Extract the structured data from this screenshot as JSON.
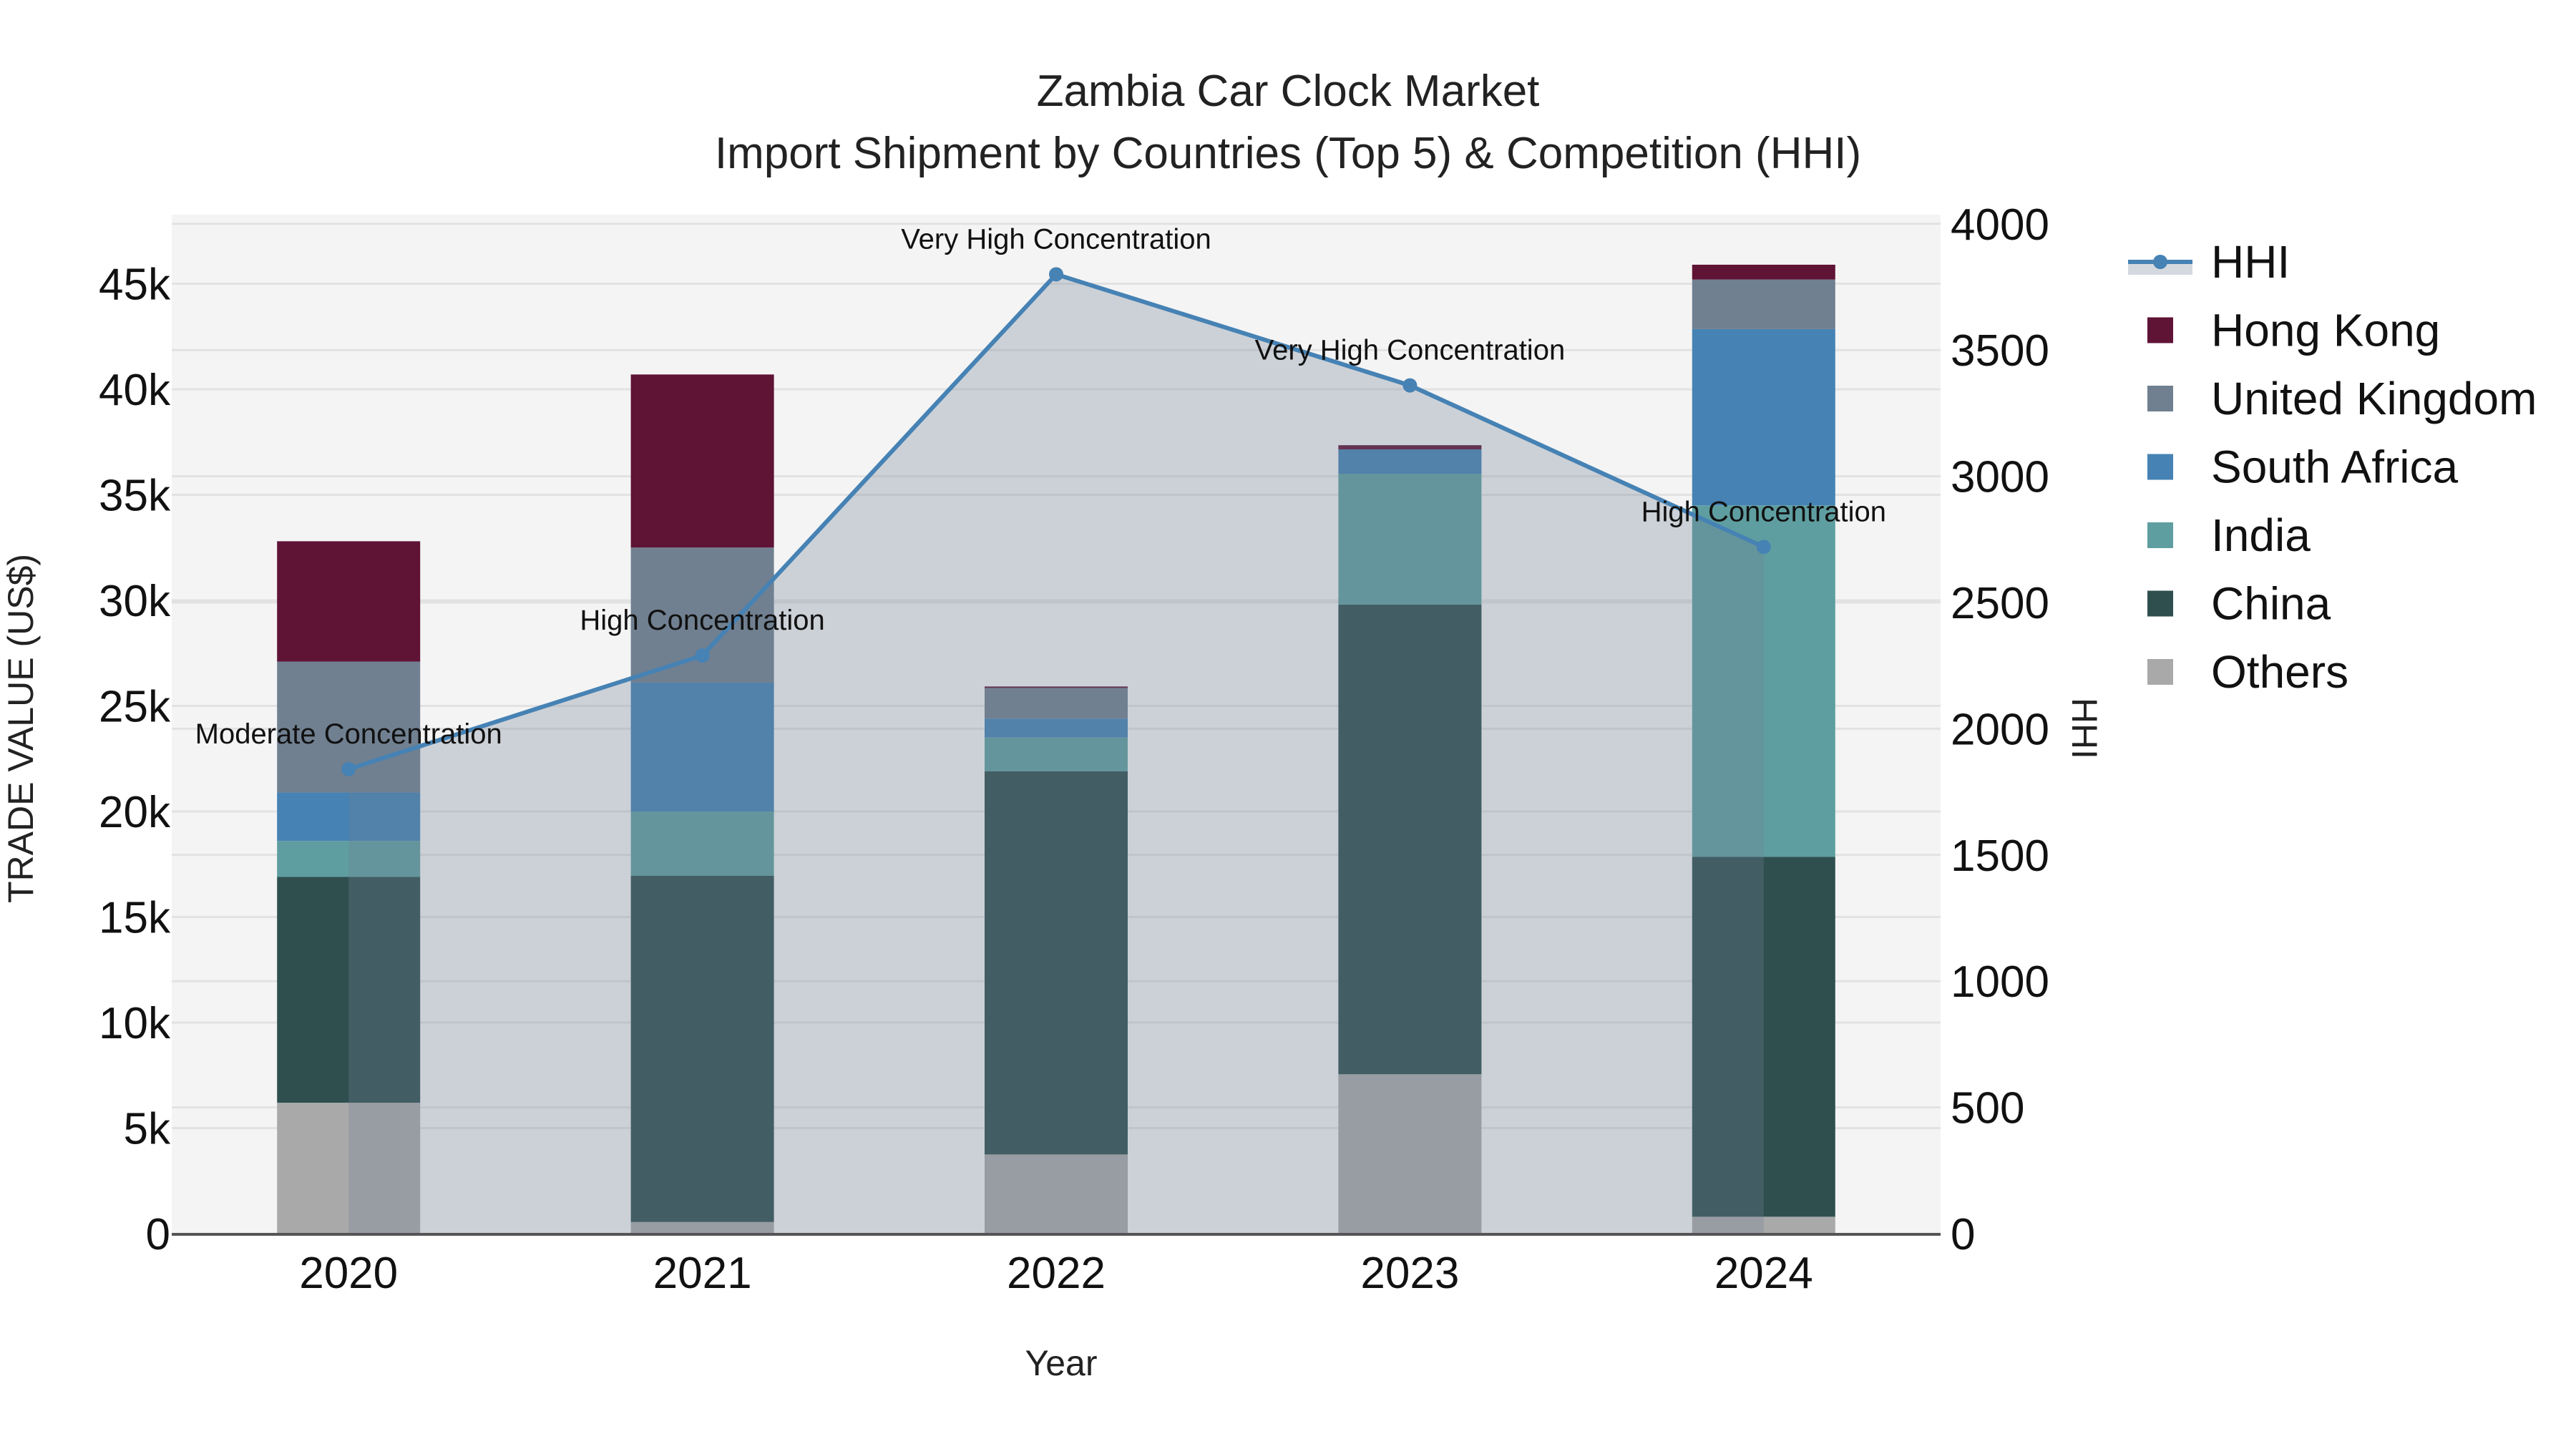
{
  "title": {
    "line1": "Zambia Car Clock Market",
    "line2": "Import Shipment by Countries (Top 5) & Competition (HHI)"
  },
  "axes": {
    "x_title": "Year",
    "y_left_title": "TRADE VALUE (US$)",
    "y_right_title": "HHI",
    "x_ticks": [
      "2020",
      "2021",
      "2022",
      "2023",
      "2024"
    ],
    "y_left_ticks": [
      "0",
      "5k",
      "10k",
      "15k",
      "20k",
      "25k",
      "30k",
      "35k",
      "40k",
      "45k"
    ],
    "y_right_ticks": [
      "0",
      "500",
      "1000",
      "1500",
      "2000",
      "2500",
      "3000",
      "3500",
      "4000"
    ]
  },
  "legend": {
    "items": [
      {
        "label": "HHI",
        "color": "#4682b4",
        "type": "line"
      },
      {
        "label": "Hong Kong",
        "color": "#5f1335",
        "type": "bar"
      },
      {
        "label": "United Kingdom",
        "color": "#708090",
        "type": "bar"
      },
      {
        "label": "South Africa",
        "color": "#4682b4",
        "type": "bar"
      },
      {
        "label": "India",
        "color": "#5f9ea0",
        "type": "bar"
      },
      {
        "label": "China",
        "color": "#2f4f4f",
        "type": "bar"
      },
      {
        "label": "Others",
        "color": "#a9a9a9",
        "type": "bar"
      }
    ]
  },
  "annotations": [
    {
      "year": "2020",
      "text": "Moderate Concentration"
    },
    {
      "year": "2021",
      "text": "High Concentration"
    },
    {
      "year": "2022",
      "text": "Very High Concentration"
    },
    {
      "year": "2023",
      "text": "Very High Concentration"
    },
    {
      "year": "2024",
      "text": "High Concentration"
    }
  ],
  "chart_data": {
    "type": "bar",
    "subtype": "stacked bar with secondary-axis line/area",
    "title": "Zambia Car Clock Market — Import Shipment by Countries (Top 5) & Competition (HHI)",
    "xlabel": "Year",
    "ylabel": "TRADE VALUE (US$)",
    "y2label": "HHI",
    "categories": [
      "2020",
      "2021",
      "2022",
      "2023",
      "2024"
    ],
    "ylim": [
      0,
      48000
    ],
    "y2lim": [
      0,
      4000
    ],
    "grid": true,
    "legend_position": "right",
    "series": [
      {
        "name": "Others",
        "color": "#a9a9a9",
        "values": [
          6200,
          550,
          3750,
          7550,
          800
        ]
      },
      {
        "name": "China",
        "color": "#2f4f4f",
        "values": [
          10700,
          16400,
          18150,
          22250,
          17050
        ]
      },
      {
        "name": "India",
        "color": "#5f9ea0",
        "values": [
          1700,
          3050,
          1600,
          6200,
          16650
        ]
      },
      {
        "name": "South Africa",
        "color": "#4682b4",
        "values": [
          2300,
          6100,
          900,
          1150,
          8350
        ]
      },
      {
        "name": "United Kingdom",
        "color": "#708090",
        "values": [
          6200,
          6400,
          1450,
          0,
          2350
        ]
      },
      {
        "name": "Hong Kong",
        "color": "#5f1335",
        "values": [
          5700,
          8200,
          70,
          200,
          700
        ]
      }
    ],
    "totals": [
      32800,
      40700,
      25920,
      37350,
      45900
    ],
    "line_series": {
      "name": "HHI",
      "axis": "right",
      "color": "#4682b4",
      "fill": "tozeroy",
      "values": [
        1840,
        2290,
        3800,
        3360,
        2720
      ],
      "labels": [
        "Moderate Concentration",
        "High Concentration",
        "Very High Concentration",
        "Very High Concentration",
        "High Concentration"
      ]
    }
  }
}
